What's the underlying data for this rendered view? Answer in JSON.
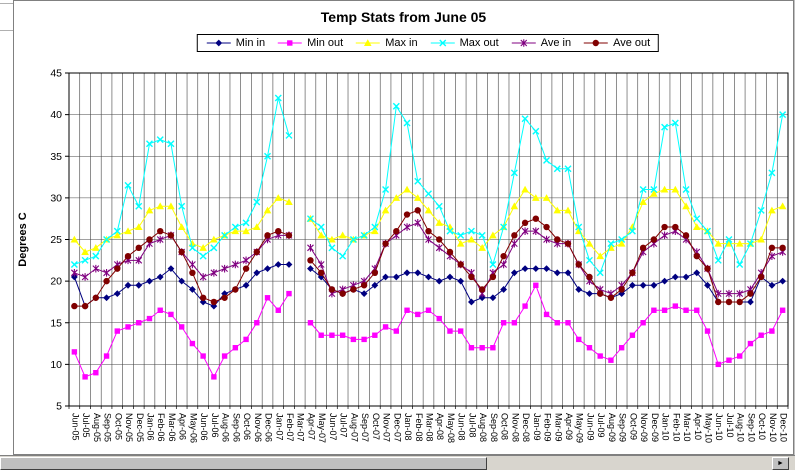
{
  "ui": {
    "background": "#c0c0c0",
    "chart_background": "#ffffff",
    "scrollbar": {
      "right_arrow_icon": "►"
    }
  },
  "chart_data": {
    "type": "line",
    "title": "Temp Stats from June 05",
    "xlabel": "",
    "ylabel": "Degrees C",
    "ylim": [
      5,
      45
    ],
    "ytick_step": 5,
    "grid": true,
    "legend_position": "top",
    "categories": [
      "Jun-05",
      "Jul-05",
      "Aug-05",
      "Sep-05",
      "Oct-05",
      "Nov-05",
      "Dec-05",
      "Jan-06",
      "Feb-06",
      "Mar-06",
      "Apr-06",
      "May-06",
      "Jun-06",
      "Jul-06",
      "Aug-06",
      "Sep-06",
      "Oct-06",
      "Nov-06",
      "Dec-06",
      "Jan-07",
      "Feb-07",
      "Mar-07",
      "Apr-07",
      "May-07",
      "Jun-07",
      "Jul-07",
      "Aug-07",
      "Sep-07",
      "Oct-07",
      "Nov-07",
      "Dec-07",
      "Jan-08",
      "Feb-08",
      "Mar-08",
      "Apr-08",
      "May-08",
      "Jun-08",
      "Jul-08",
      "Aug-08",
      "Sep-08",
      "Oct-08",
      "Nov-08",
      "Dec-08",
      "Jan-09",
      "Feb-09",
      "Mar-09",
      "Apr-09",
      "May-09",
      "Jun-09",
      "Jul-09",
      "Aug-09",
      "Sep-09",
      "Oct-09",
      "Nov-09",
      "Dec-09",
      "Jan-10",
      "Feb-10",
      "Mar-10",
      "Apr-10",
      "May-10",
      "Jun-10",
      "Jul-10",
      "Aug-10",
      "Sep-10",
      "Oct-10",
      "Nov-10",
      "Dec-10"
    ],
    "series": [
      {
        "name": "Min in",
        "color": "#000080",
        "marker": "diamond",
        "values": [
          20.5,
          17,
          18,
          18,
          18.5,
          19.5,
          19.5,
          20,
          20.5,
          21.5,
          20,
          19,
          17.5,
          17,
          18.5,
          19,
          19.5,
          21,
          21.5,
          22,
          22,
          null,
          21.5,
          20.5,
          19,
          18.5,
          19,
          18.5,
          19.5,
          20.5,
          20.5,
          21,
          21,
          20.5,
          20,
          20.5,
          20,
          17.5,
          18,
          18,
          19,
          21,
          21.5,
          21.5,
          21.5,
          21,
          21,
          19,
          18.5,
          18.5,
          18,
          18.5,
          19.5,
          19.5,
          19.5,
          20,
          20.5,
          20.5,
          21,
          19.5,
          17.5,
          17.5,
          17.5,
          17.5,
          20.5,
          19.5,
          20
        ]
      },
      {
        "name": "Min out",
        "color": "#FF00FF",
        "marker": "square",
        "values": [
          11.5,
          8.5,
          9,
          11,
          14,
          14.5,
          15,
          15.5,
          16.5,
          16,
          14.5,
          12.5,
          11,
          8.5,
          11,
          12,
          13,
          15,
          18,
          16.5,
          18.5,
          null,
          15,
          13.5,
          13.5,
          13.5,
          13,
          13,
          13.5,
          14.5,
          14,
          16.5,
          16,
          16.5,
          15.5,
          14,
          14,
          12,
          12,
          12,
          15,
          15,
          17,
          19.5,
          16,
          15,
          15,
          13,
          12,
          11,
          10.5,
          12,
          13.5,
          15,
          16.5,
          16.5,
          17,
          16.5,
          16.5,
          14,
          10,
          10.5,
          11,
          12.5,
          13.5,
          14,
          16.5
        ]
      },
      {
        "name": "Max in",
        "color": "#FFFF00",
        "marker": "triangle",
        "values": [
          25,
          23.5,
          24,
          25,
          25.5,
          26,
          26.5,
          28.5,
          29,
          29,
          26.5,
          24.5,
          24,
          25,
          25.5,
          26,
          26,
          26.5,
          28.5,
          30,
          29.5,
          null,
          27.5,
          25.5,
          25,
          25.5,
          25,
          25.5,
          26,
          28.5,
          30,
          31,
          30,
          28.5,
          27,
          26.5,
          24.5,
          25,
          24,
          25.5,
          26.5,
          29,
          31,
          30,
          30,
          28.5,
          28.5,
          26,
          24.5,
          23,
          24,
          24.5,
          26.5,
          29.5,
          30.5,
          31,
          31,
          29,
          26.5,
          26,
          24.5,
          24.5,
          24.5,
          24.5,
          25,
          28.5,
          29
        ]
      },
      {
        "name": "Max out",
        "color": "#00FFFF",
        "marker": "x",
        "values": [
          22,
          22.5,
          23,
          25,
          26,
          31.5,
          29,
          36.5,
          37,
          36.5,
          29,
          24,
          23,
          24,
          25.5,
          26.5,
          27,
          29.5,
          35,
          42,
          37.5,
          null,
          27.5,
          26.5,
          24,
          23,
          25,
          25.5,
          26.5,
          31,
          41,
          39,
          32,
          30.5,
          29,
          26,
          25.5,
          26,
          25.5,
          22,
          26.5,
          33,
          39.5,
          38,
          34.5,
          33.5,
          33.5,
          26.5,
          22.5,
          21,
          24.5,
          25,
          26,
          31,
          31,
          38.5,
          39,
          31,
          27.5,
          26,
          22.5,
          25,
          22,
          24.5,
          28.5,
          33,
          40
        ]
      },
      {
        "name": "Ave in",
        "color": "#800080",
        "marker": "star",
        "values": [
          21,
          20.5,
          21.5,
          21,
          22,
          22.5,
          22.5,
          24.5,
          25,
          25.5,
          23.5,
          22,
          20.5,
          21,
          21.5,
          22,
          22.5,
          23.5,
          25,
          25.5,
          25.5,
          null,
          24,
          22,
          18.5,
          19,
          19.5,
          20,
          21.5,
          24.5,
          25.5,
          26.5,
          27,
          25,
          24,
          23,
          22,
          21,
          18.5,
          21,
          22,
          24.5,
          26,
          26,
          25,
          24.5,
          24.5,
          22,
          20,
          19,
          18.5,
          19.5,
          21,
          23.5,
          24.5,
          25.5,
          26,
          25,
          23.5,
          21.5,
          18.5,
          18.5,
          18.5,
          19,
          21,
          23,
          23.5
        ]
      },
      {
        "name": "Ave out",
        "color": "#800000",
        "marker": "circle",
        "values": [
          17,
          17,
          18,
          20,
          21.5,
          23,
          24,
          25,
          26,
          25.5,
          23.5,
          21,
          18,
          17.5,
          18,
          19,
          21.5,
          23.5,
          25.5,
          26,
          25.5,
          null,
          22.5,
          21,
          19,
          18.5,
          19,
          19.5,
          21,
          24.5,
          26,
          28,
          28.5,
          26,
          25,
          23.5,
          22,
          20.5,
          19,
          20.5,
          23,
          25.5,
          27,
          27.5,
          26.5,
          25,
          24.5,
          22,
          20.5,
          18.5,
          18,
          19,
          21,
          24,
          25,
          26.5,
          26.5,
          25.5,
          23,
          21.5,
          17.5,
          17.5,
          17.5,
          18.5,
          20.5,
          24,
          24
        ]
      }
    ]
  }
}
